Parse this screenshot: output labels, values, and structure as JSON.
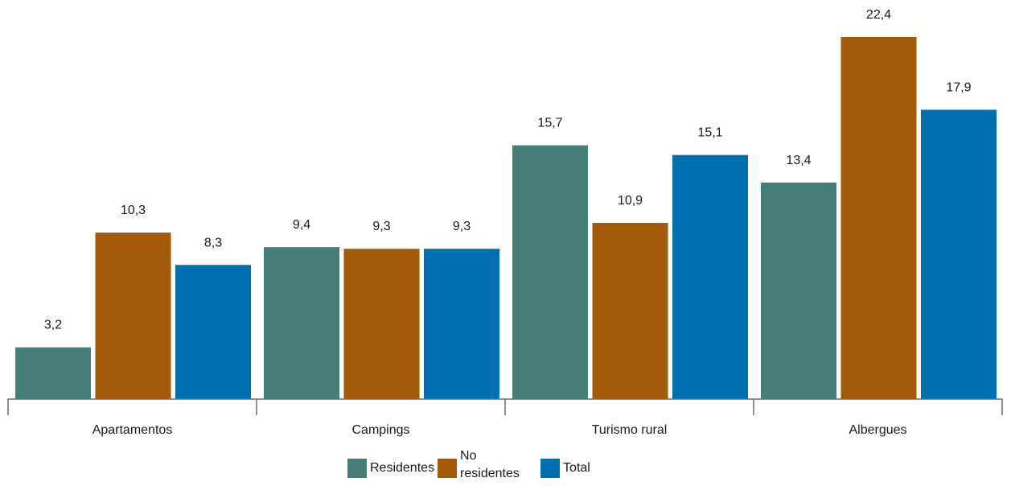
{
  "chart_data": {
    "type": "bar",
    "categories": [
      "Apartamentos",
      "Campings",
      "Turismo rural",
      "Albergues"
    ],
    "series": [
      {
        "name": "Residentes",
        "color": "#467d76",
        "values": [
          3.2,
          9.4,
          15.7,
          13.4
        ],
        "labels": [
          "3,2",
          "9,4",
          "15,7",
          "13,4"
        ]
      },
      {
        "name": "No residentes",
        "color": "#a35b09",
        "values": [
          10.3,
          9.3,
          10.9,
          22.4
        ],
        "labels": [
          "10,3",
          "9,3",
          "10,9",
          "22,4"
        ]
      },
      {
        "name": "Total",
        "color": "#006faf",
        "values": [
          8.3,
          9.3,
          15.1,
          17.9
        ],
        "labels": [
          "8,3",
          "9,3",
          "15,1",
          "17,9"
        ]
      }
    ],
    "ylim": [
      0,
      22.4
    ],
    "grid": false,
    "legend_position": "bottom"
  },
  "legend": {
    "residentes": "Residentes",
    "no_residentes": "No residentes",
    "total": "Total"
  }
}
